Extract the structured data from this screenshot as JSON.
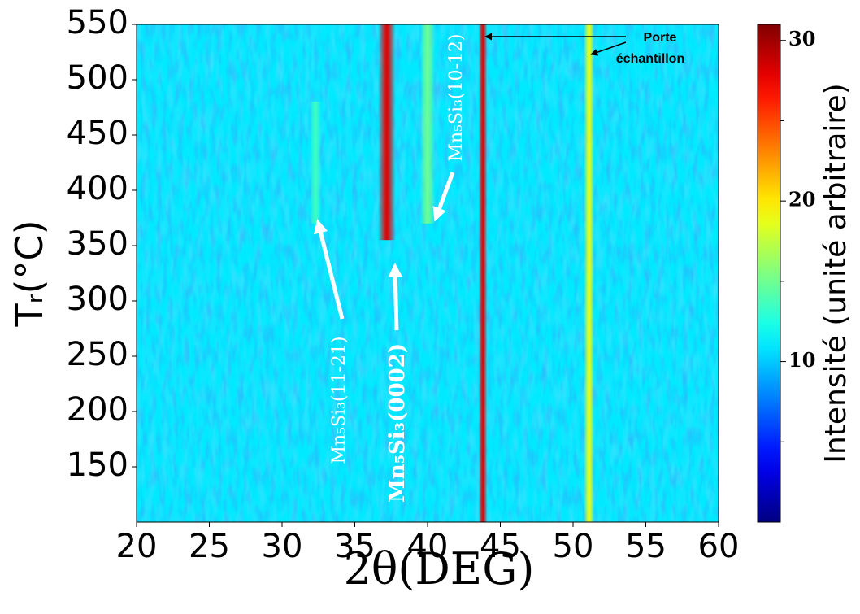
{
  "chart_data": {
    "type": "heatmap",
    "xlabel": "2θ(DEG)",
    "ylabel": "Tᵣ(°C)",
    "colorbar_label": "Intensité (unité arbitraire)",
    "xlim": [
      20,
      60
    ],
    "xticks": [
      20,
      25,
      30,
      35,
      40,
      45,
      50,
      55,
      60
    ],
    "ylim": [
      100,
      550
    ],
    "yticks": [
      150,
      200,
      250,
      300,
      350,
      400,
      450,
      500,
      550
    ],
    "clim": [
      0,
      31
    ],
    "cticks": [
      10,
      20,
      30
    ],
    "cminor_ticks": [
      5,
      15,
      25
    ],
    "colormap": "jet",
    "background_level": 11,
    "peaks": [
      {
        "x": 32.3,
        "intensity": 13.5,
        "fwhm": 0.4,
        "t_range": [
          370,
          480
        ]
      },
      {
        "x": 37.2,
        "intensity": 28,
        "fwhm": 0.6,
        "t_range": [
          355,
          550
        ]
      },
      {
        "x": 40.0,
        "intensity": 15,
        "fwhm": 0.5,
        "t_range": [
          370,
          550
        ]
      },
      {
        "x": 43.8,
        "intensity": 28,
        "fwhm": 0.3,
        "t_range": [
          100,
          550
        ]
      },
      {
        "x": 51.1,
        "intensity": 19,
        "fwhm": 0.35,
        "t_range": [
          100,
          550
        ]
      }
    ],
    "annotations": [
      {
        "text": "Mn₅Si₃(11-21)"
      },
      {
        "text": "Mn₅Si₃(0002)"
      },
      {
        "text": "Mn₅Si₃(10-12)"
      },
      {
        "text_lines": [
          "Porte",
          "échantillon"
        ]
      }
    ]
  }
}
